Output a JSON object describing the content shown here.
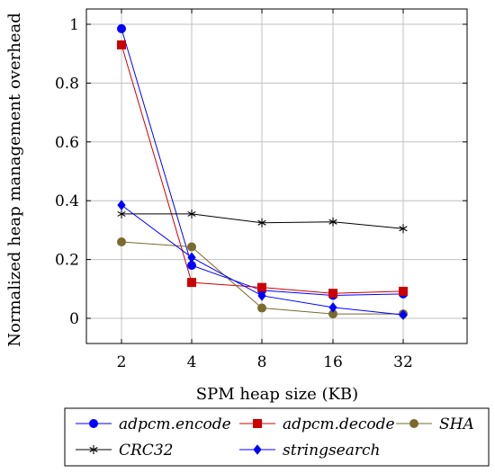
{
  "chart_data": {
    "type": "line",
    "xlabel": "SPM heap size (KB)",
    "ylabel": "Normalized heap management overhead",
    "categories": [
      "2",
      "4",
      "8",
      "16",
      "32"
    ],
    "ylim": [
      -0.08,
      1.0
    ],
    "yticks": [
      "0",
      "0.2",
      "0.4",
      "0.6",
      "0.8",
      "1"
    ],
    "grid": true,
    "legend_position": "bottom",
    "series": [
      {
        "name": "adpcm.encode",
        "color": "#0000ff",
        "marker": "circle",
        "values": [
          0.985,
          0.18,
          0.095,
          0.078,
          0.083
        ]
      },
      {
        "name": "adpcm.decode",
        "color": "#cc0000",
        "marker": "square",
        "values": [
          0.93,
          0.122,
          0.105,
          0.085,
          0.092
        ]
      },
      {
        "name": "SHA",
        "color": "#7a6a2e",
        "marker": "circle",
        "values": [
          0.26,
          0.243,
          0.035,
          0.015,
          0.015
        ]
      },
      {
        "name": "CRC32",
        "color": "#000000",
        "marker": "star",
        "values": [
          0.355,
          0.355,
          0.325,
          0.328,
          0.305
        ]
      },
      {
        "name": "stringsearch",
        "color": "#0000ff",
        "marker": "diamond",
        "values": [
          0.385,
          0.207,
          0.077,
          0.037,
          0.012
        ]
      }
    ]
  }
}
